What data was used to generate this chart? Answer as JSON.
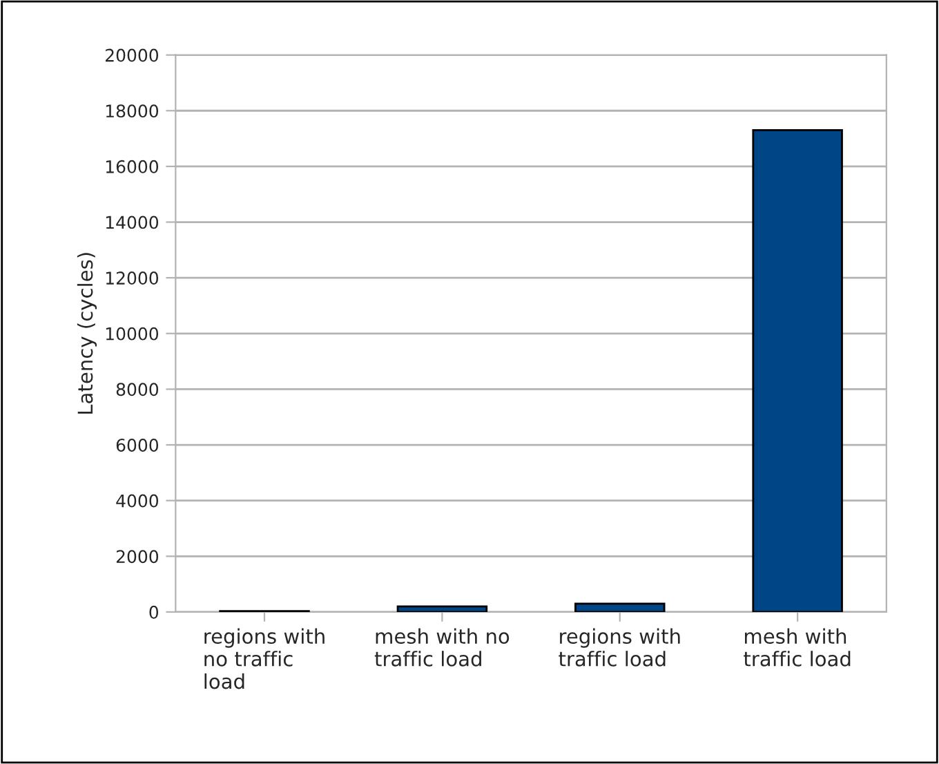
{
  "chart_data": {
    "type": "bar",
    "ylabel": "Latency (cycles)",
    "categories": [
      "regions with no traffic load",
      "mesh with no traffic load",
      "regions with traffic load",
      "mesh with traffic load"
    ],
    "values": [
      30,
      200,
      300,
      17300
    ],
    "color": "#004586",
    "ylim": [
      0,
      20000
    ],
    "yticks": [
      0,
      2000,
      4000,
      6000,
      8000,
      10000,
      12000,
      14000,
      16000,
      18000,
      20000
    ],
    "grid": "y"
  }
}
